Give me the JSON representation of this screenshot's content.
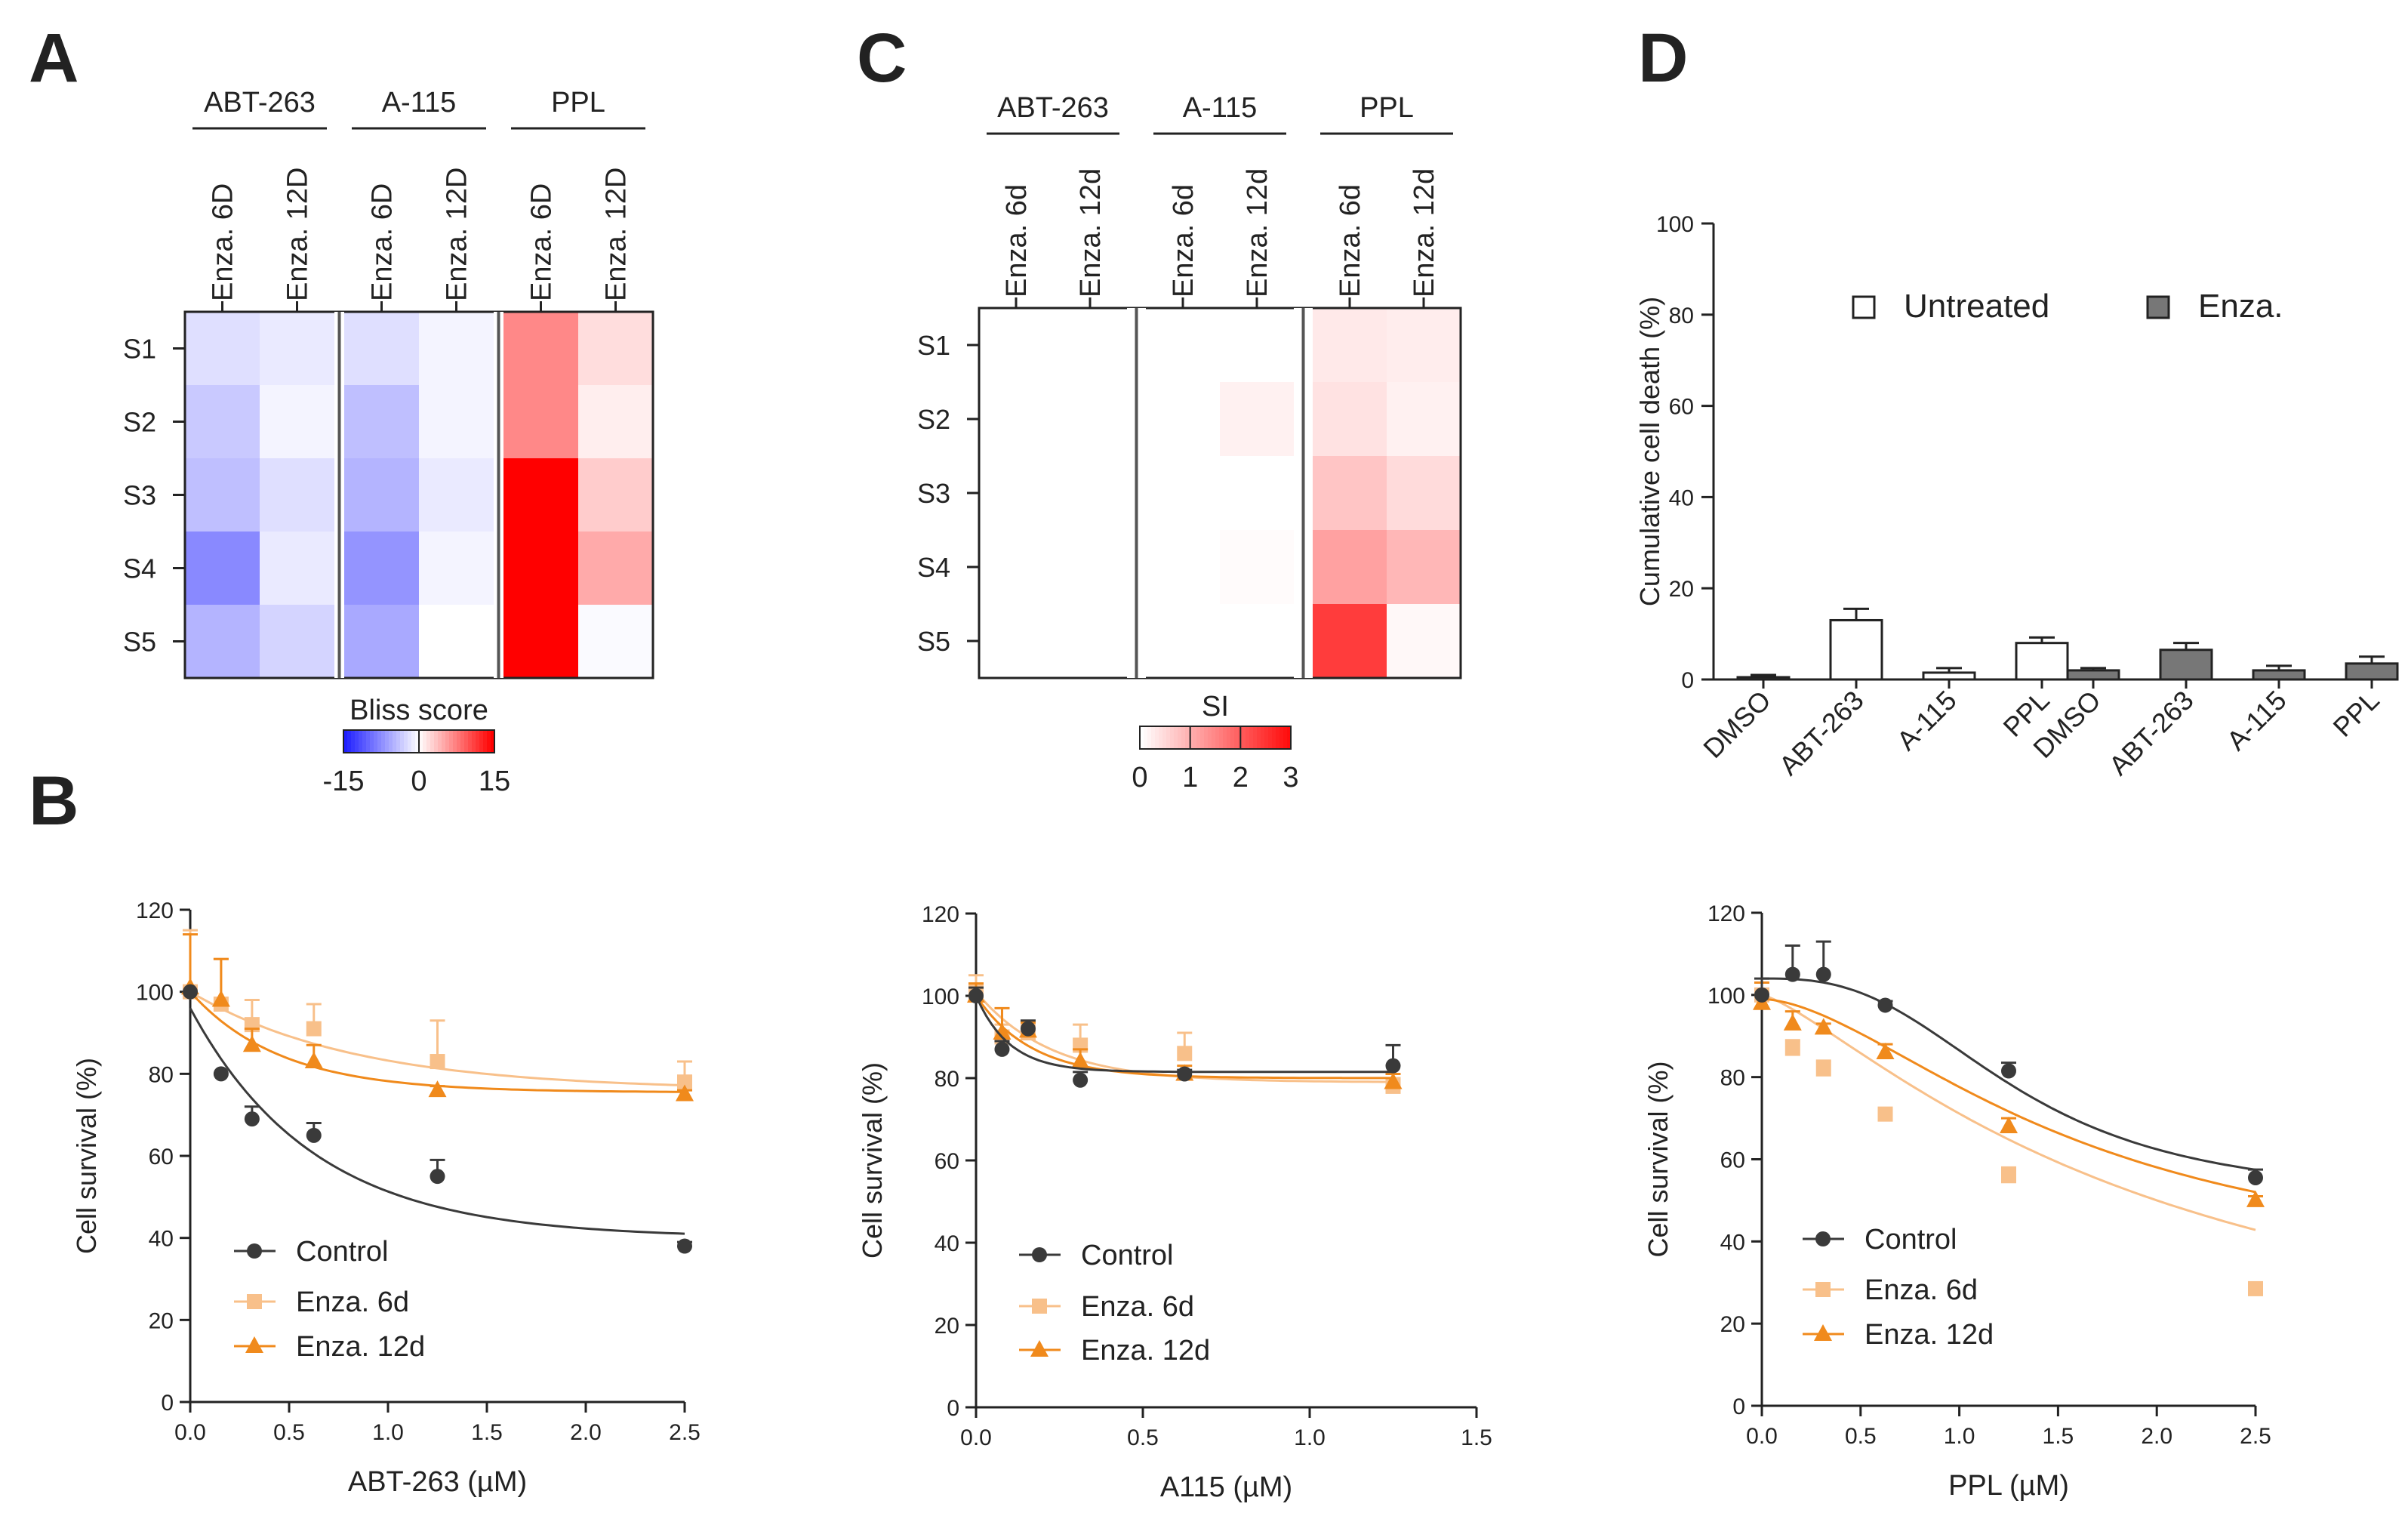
{
  "panel_labels": {
    "a": "A",
    "b": "B",
    "c": "C",
    "d": "D"
  },
  "colors": {
    "control": "#3a3a3a",
    "enza6d": "#f8c08a",
    "enza12d": "#f08a1c",
    "heat_neg": "#2020ff",
    "heat_pos": "#ff0000",
    "enza_bar": "#777777",
    "axis": "#222222"
  },
  "chart_data": [
    {
      "id": "A",
      "type": "heatmap",
      "title": "Bliss score",
      "groups": [
        "ABT-263",
        "A-115",
        "PPL"
      ],
      "columns": [
        "Enza. 6D",
        "Enza. 12D",
        "Enza. 6D",
        "Enza. 12D",
        "Enza. 6D",
        "Enza. 12D"
      ],
      "rows": [
        "S1",
        "S2",
        "S3",
        "S4",
        "S5"
      ],
      "values": [
        [
          -3,
          -2,
          -3,
          -1,
          7,
          2
        ],
        [
          -5,
          -1,
          -6,
          -1,
          7,
          1
        ],
        [
          -6,
          -3,
          -7,
          -2,
          15,
          3
        ],
        [
          -11,
          -2,
          -10,
          -1,
          15,
          5
        ],
        [
          -7,
          -4,
          -8,
          0,
          15,
          -0.5
        ]
      ],
      "scale": {
        "min": -15,
        "max": 15,
        "ticks": [
          "-15",
          "0",
          "15"
        ],
        "label": "Bliss score"
      }
    },
    {
      "id": "C",
      "type": "heatmap",
      "title": "SI",
      "groups": [
        "ABT-263",
        "A-115",
        "PPL"
      ],
      "columns": [
        "Enza. 6d",
        "Enza. 12d",
        "Enza. 6d",
        "Enza. 12d",
        "Enza. 6d",
        "Enza. 12d"
      ],
      "rows": [
        "S1",
        "S2",
        "S3",
        "S4",
        "S5"
      ],
      "values": [
        [
          0,
          0,
          0,
          0,
          0.3,
          0.25
        ],
        [
          0,
          0,
          0,
          0.2,
          0.4,
          0.2
        ],
        [
          0,
          0,
          0,
          0,
          0.8,
          0.5
        ],
        [
          0,
          0,
          0,
          0.05,
          1.3,
          1.0
        ],
        [
          0,
          0,
          0,
          0,
          2.7,
          0.1
        ]
      ],
      "scale": {
        "min": 0,
        "max": 3,
        "ticks": [
          "0",
          "1",
          "2",
          "3"
        ],
        "label": "SI"
      }
    },
    {
      "id": "D",
      "type": "bar",
      "ylabel": "Cumulative cell death (%)",
      "ylim": [
        0,
        100
      ],
      "yticks": [
        0,
        20,
        40,
        60,
        80,
        100
      ],
      "legend": [
        "Untreated",
        "Enza."
      ],
      "series": [
        {
          "name": "Untreated",
          "categories": [
            "DMSO",
            "ABT-263",
            "A-115",
            "PPL"
          ],
          "values": [
            0.5,
            13,
            1.5,
            8
          ],
          "errors": [
            0.5,
            2.5,
            1,
            1.2
          ]
        },
        {
          "name": "Enza.",
          "categories": [
            "DMSO",
            "ABT-263",
            "A-115",
            "PPL"
          ],
          "values": [
            2,
            6.5,
            2,
            3.5
          ],
          "errors": [
            0.5,
            1.5,
            1,
            1.5
          ]
        }
      ]
    },
    {
      "id": "B1",
      "type": "line",
      "xlabel": "ABT-263 (µM)",
      "ylabel": "Cell survival (%)",
      "xlim": [
        0,
        2.5
      ],
      "ylim": [
        0,
        120
      ],
      "xticks": [
        "0.0",
        "0.5",
        "1.0",
        "1.5",
        "2.0",
        "2.5"
      ],
      "yticks": [
        "0",
        "20",
        "40",
        "60",
        "80",
        "100",
        "120"
      ],
      "legend": [
        "Control",
        "Enza. 6d",
        "Enza. 12d"
      ],
      "series": [
        {
          "name": "Control",
          "x": [
            0,
            0.156,
            0.3125,
            0.625,
            1.25,
            2.5
          ],
          "y": [
            100,
            80,
            69,
            65,
            55,
            38
          ],
          "err": [
            0,
            0,
            3,
            3,
            4,
            1
          ],
          "fit": {
            "bottom": 40,
            "top": 96,
            "k": 1.6
          }
        },
        {
          "name": "Enza. 6d",
          "x": [
            0,
            0.156,
            0.3125,
            0.625,
            1.25,
            2.5
          ],
          "y": [
            100,
            97,
            92,
            91,
            83,
            78
          ],
          "err": [
            15,
            11,
            6,
            6,
            10,
            5
          ],
          "fit": {
            "bottom": 76,
            "top": 100,
            "k": 1.2
          }
        },
        {
          "name": "Enza. 12d",
          "x": [
            0,
            0.156,
            0.3125,
            0.625,
            1.25,
            2.5
          ],
          "y": [
            101,
            98,
            87,
            83,
            76,
            75
          ],
          "err": [
            13,
            10,
            4,
            4,
            1,
            1
          ],
          "fit": {
            "bottom": 75.5,
            "top": 100,
            "k": 2.2
          }
        }
      ]
    },
    {
      "id": "B2",
      "type": "line",
      "xlabel": "A115 (µM)",
      "ylabel": "Cell survival (%)",
      "xlim": [
        0,
        1.5
      ],
      "ylim": [
        0,
        120
      ],
      "xticks": [
        "0.0",
        "0.5",
        "1.0",
        "1.5"
      ],
      "yticks": [
        "0",
        "20",
        "40",
        "60",
        "80",
        "100",
        "120"
      ],
      "legend": [
        "Control",
        "Enza. 6d",
        "Enza. 12d"
      ],
      "series": [
        {
          "name": "Control",
          "x": [
            0,
            0.078,
            0.156,
            0.3125,
            0.625,
            1.25
          ],
          "y": [
            100,
            87,
            92,
            79.5,
            81,
            83
          ],
          "err": [
            2,
            2,
            2,
            2,
            1,
            5
          ],
          "fit": {
            "bottom": 81.5,
            "top": 100,
            "k": 10
          }
        },
        {
          "name": "Enza. 6d",
          "x": [
            0,
            0.078,
            0.156,
            0.3125,
            0.625,
            1.25
          ],
          "y": [
            101,
            90,
            91,
            88,
            86,
            78
          ],
          "err": [
            4,
            3,
            2,
            5,
            5,
            2
          ],
          "fit": {
            "bottom": 79,
            "top": 101,
            "k": 4.5
          }
        },
        {
          "name": "Enza. 12d",
          "x": [
            0,
            0.078,
            0.156,
            0.3125,
            0.625,
            1.25
          ],
          "y": [
            100,
            91,
            91.5,
            84,
            81,
            79
          ],
          "err": [
            3,
            6,
            2,
            3,
            2,
            2
          ],
          "fit": {
            "bottom": 80,
            "top": 100,
            "k": 6
          }
        }
      ]
    },
    {
      "id": "B3",
      "type": "line",
      "xlabel": "PPL (µM)",
      "ylabel": "Cell survival (%)",
      "xlim": [
        0,
        2.5
      ],
      "ylim": [
        0,
        120
      ],
      "xticks": [
        "0.0",
        "0.5",
        "1.0",
        "1.5",
        "2.0",
        "2.5"
      ],
      "yticks": [
        "0",
        "20",
        "40",
        "60",
        "80",
        "100",
        "120"
      ],
      "legend": [
        "Control",
        "Enza. 6d",
        "Enza. 12d"
      ],
      "series": [
        {
          "name": "Control",
          "x": [
            0,
            0.156,
            0.3125,
            0.625,
            1.25,
            2.5
          ],
          "y": [
            100,
            105,
            105,
            97.5,
            81.5,
            55.5
          ],
          "err": [
            4,
            7,
            8,
            1,
            2,
            2
          ],
          "fit": {
            "bottom": 50,
            "top": 104,
            "ic50": 1.3,
            "h": 2.8
          }
        },
        {
          "name": "Enza. 6d",
          "x": [
            0,
            0.156,
            0.3125,
            0.625,
            1.25,
            2.5
          ],
          "y": [
            100,
            87,
            82,
            71,
            56,
            28.5
          ],
          "err": [
            3,
            2,
            2,
            1,
            2,
            1
          ],
          "fit": {
            "bottom": 0,
            "top": 100,
            "ic50": 2.0,
            "h": 1.3
          }
        },
        {
          "name": "Enza. 12d",
          "x": [
            0,
            0.156,
            0.3125,
            0.625,
            1.25,
            2.5
          ],
          "y": [
            98,
            93,
            92,
            86,
            68,
            50
          ],
          "err": [
            5,
            3,
            1,
            2,
            2,
            1
          ],
          "fit": {
            "bottom": 30,
            "top": 99,
            "ic50": 1.6,
            "h": 1.7
          }
        }
      ]
    }
  ]
}
